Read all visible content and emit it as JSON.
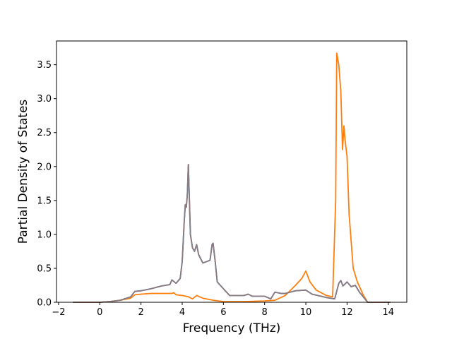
{
  "chart_data": {
    "type": "line",
    "title": "",
    "xlabel": "Frequency (THz)",
    "ylabel": "Partial Density of States",
    "xlim": [
      -2.1,
      14.9
    ],
    "ylim": [
      0,
      3.85
    ],
    "grid": false,
    "legend": "none",
    "x_ticks": [
      -2,
      0,
      2,
      4,
      6,
      8,
      10,
      12,
      14
    ],
    "x_tick_labels": [
      "−2",
      "0",
      "2",
      "4",
      "6",
      "8",
      "10",
      "12",
      "14"
    ],
    "y_ticks": [
      0.0,
      0.5,
      1.0,
      1.5,
      2.0,
      2.5,
      3.0,
      3.5
    ],
    "y_tick_labels": [
      "0.0",
      "0.5",
      "1.0",
      "1.5",
      "2.0",
      "2.5",
      "3.0",
      "3.5"
    ],
    "series": [
      {
        "color": "#1f77b4",
        "points": [
          [
            -1.3,
            0
          ],
          [
            0,
            0
          ],
          [
            0.5,
            0.01
          ],
          [
            1,
            0.03
          ],
          [
            1.5,
            0.08
          ],
          [
            1.7,
            0.16
          ],
          [
            2,
            0.17
          ],
          [
            2.5,
            0.2
          ],
          [
            3,
            0.24
          ],
          [
            3.4,
            0.26
          ],
          [
            3.5,
            0.33
          ],
          [
            3.7,
            0.28
          ],
          [
            3.9,
            0.35
          ],
          [
            4.0,
            0.6
          ],
          [
            4.1,
            1.2
          ],
          [
            4.15,
            1.44
          ],
          [
            4.2,
            1.4
          ],
          [
            4.25,
            1.6
          ],
          [
            4.3,
            2.03
          ],
          [
            4.35,
            1.5
          ],
          [
            4.4,
            1.0
          ],
          [
            4.5,
            0.8
          ],
          [
            4.6,
            0.75
          ],
          [
            4.7,
            0.85
          ],
          [
            4.8,
            0.7
          ],
          [
            5.0,
            0.58
          ],
          [
            5.2,
            0.6
          ],
          [
            5.35,
            0.62
          ],
          [
            5.45,
            0.85
          ],
          [
            5.5,
            0.87
          ],
          [
            5.6,
            0.6
          ],
          [
            5.7,
            0.3
          ],
          [
            6,
            0.2
          ],
          [
            6.3,
            0.1
          ],
          [
            7,
            0.1
          ],
          [
            7.2,
            0.12
          ],
          [
            7.4,
            0.09
          ],
          [
            8,
            0.09
          ],
          [
            8.3,
            0.05
          ],
          [
            8.5,
            0.15
          ],
          [
            8.8,
            0.13
          ],
          [
            9,
            0.13
          ],
          [
            9.5,
            0.17
          ],
          [
            10,
            0.18
          ],
          [
            10.3,
            0.12
          ],
          [
            11,
            0.07
          ],
          [
            11.4,
            0.05
          ],
          [
            11.6,
            0.28
          ],
          [
            11.7,
            0.32
          ],
          [
            11.8,
            0.24
          ],
          [
            12,
            0.3
          ],
          [
            12.2,
            0.23
          ],
          [
            12.4,
            0.25
          ],
          [
            12.6,
            0.15
          ],
          [
            13,
            0
          ],
          [
            14.1,
            0
          ]
        ]
      },
      {
        "color": "#ff7f0e",
        "points": [
          [
            -1.3,
            0
          ],
          [
            0,
            0
          ],
          [
            0.5,
            0.01
          ],
          [
            1,
            0.03
          ],
          [
            1.5,
            0.06
          ],
          [
            1.7,
            0.11
          ],
          [
            2,
            0.12
          ],
          [
            2.5,
            0.13
          ],
          [
            3,
            0.13
          ],
          [
            3.5,
            0.13
          ],
          [
            3.6,
            0.14
          ],
          [
            3.7,
            0.11
          ],
          [
            4,
            0.1
          ],
          [
            4.3,
            0.08
          ],
          [
            4.5,
            0.05
          ],
          [
            4.7,
            0.1
          ],
          [
            5,
            0.06
          ],
          [
            5.5,
            0.03
          ],
          [
            6,
            0.01
          ],
          [
            7,
            0.01
          ],
          [
            8,
            0.02
          ],
          [
            8.5,
            0.03
          ],
          [
            9,
            0.1
          ],
          [
            9.5,
            0.25
          ],
          [
            9.8,
            0.35
          ],
          [
            10,
            0.46
          ],
          [
            10.2,
            0.3
          ],
          [
            10.5,
            0.18
          ],
          [
            11,
            0.1
          ],
          [
            11.3,
            0.08
          ],
          [
            11.45,
            1.5
          ],
          [
            11.5,
            3.67
          ],
          [
            11.6,
            3.5
          ],
          [
            11.7,
            3.1
          ],
          [
            11.78,
            2.25
          ],
          [
            11.85,
            2.6
          ],
          [
            11.9,
            2.4
          ],
          [
            12,
            2.15
          ],
          [
            12.1,
            1.3
          ],
          [
            12.3,
            0.5
          ],
          [
            12.5,
            0.3
          ],
          [
            12.8,
            0.1
          ],
          [
            13,
            0
          ],
          [
            14.1,
            0
          ]
        ]
      },
      {
        "color": "#8c7a7e",
        "points": [
          [
            -1.3,
            0
          ],
          [
            0,
            0
          ],
          [
            0.5,
            0.01
          ],
          [
            1,
            0.03
          ],
          [
            1.5,
            0.08
          ],
          [
            1.7,
            0.16
          ],
          [
            2,
            0.17
          ],
          [
            2.5,
            0.2
          ],
          [
            3,
            0.24
          ],
          [
            3.4,
            0.26
          ],
          [
            3.5,
            0.33
          ],
          [
            3.7,
            0.28
          ],
          [
            3.9,
            0.35
          ],
          [
            4.0,
            0.6
          ],
          [
            4.1,
            1.2
          ],
          [
            4.15,
            1.44
          ],
          [
            4.2,
            1.4
          ],
          [
            4.25,
            1.6
          ],
          [
            4.3,
            2.03
          ],
          [
            4.35,
            1.5
          ],
          [
            4.4,
            1.0
          ],
          [
            4.5,
            0.8
          ],
          [
            4.6,
            0.75
          ],
          [
            4.7,
            0.85
          ],
          [
            4.8,
            0.7
          ],
          [
            5.0,
            0.58
          ],
          [
            5.2,
            0.6
          ],
          [
            5.35,
            0.62
          ],
          [
            5.45,
            0.85
          ],
          [
            5.5,
            0.87
          ],
          [
            5.6,
            0.6
          ],
          [
            5.7,
            0.3
          ],
          [
            6,
            0.2
          ],
          [
            6.3,
            0.1
          ],
          [
            7,
            0.1
          ],
          [
            7.2,
            0.12
          ],
          [
            7.4,
            0.09
          ],
          [
            8,
            0.09
          ],
          [
            8.3,
            0.05
          ],
          [
            8.5,
            0.15
          ],
          [
            8.8,
            0.13
          ],
          [
            9,
            0.13
          ],
          [
            9.5,
            0.17
          ],
          [
            10,
            0.18
          ],
          [
            10.3,
            0.12
          ],
          [
            11,
            0.07
          ],
          [
            11.4,
            0.05
          ],
          [
            11.6,
            0.28
          ],
          [
            11.7,
            0.32
          ],
          [
            11.8,
            0.24
          ],
          [
            12,
            0.3
          ],
          [
            12.2,
            0.23
          ],
          [
            12.4,
            0.25
          ],
          [
            12.6,
            0.15
          ],
          [
            13,
            0
          ],
          [
            14.1,
            0
          ]
        ]
      }
    ]
  }
}
